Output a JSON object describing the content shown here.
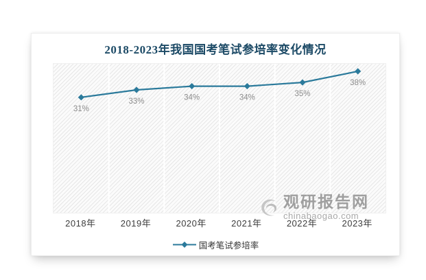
{
  "window": {
    "background": "#ffffff"
  },
  "chart_data": {
    "type": "line",
    "title": "2018-2023年我国国考笔试参培率变化情况",
    "categories": [
      "2018年",
      "2019年",
      "2020年",
      "2021年",
      "2022年",
      "2023年"
    ],
    "series": [
      {
        "name": "国考笔试参培率",
        "values": [
          31,
          33,
          34,
          34,
          35,
          38
        ],
        "labels": [
          "31%",
          "33%",
          "34%",
          "34%",
          "35%",
          "38%"
        ]
      }
    ],
    "ylim": [
      0,
      40
    ],
    "xlabel": "",
    "ylabel": "",
    "grid": "vertical-column-separators",
    "legend_position": "bottom-center",
    "style": {
      "line_color": "#2b7a9b",
      "marker": "diamond",
      "marker_color": "#2b7a9b",
      "value_label_color": "#8c8c8c",
      "title_color": "#1c4a66",
      "axis_label_color": "#3d3d3d",
      "plot_hatch_line_color": "#e7e7e7",
      "plot_background": "#fbfbfb",
      "column_separator_color": "#ffffff"
    }
  },
  "watermark": {
    "brand": "观研报告网",
    "domain": "chinabaogao.com",
    "icon": "swirl-logo-icon",
    "color": "#a6a6a6"
  }
}
